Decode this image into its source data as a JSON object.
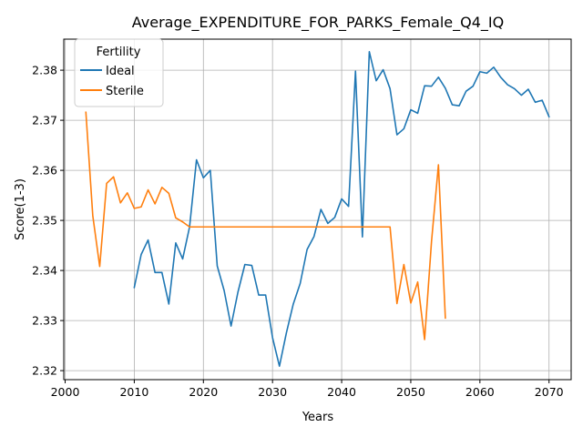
{
  "chart_data": {
    "type": "line",
    "title": "Average_EXPENDITURE_FOR_PARKS_Female_Q4_IQ",
    "xlabel": "Years",
    "ylabel": "Score(1-3)",
    "xlim": [
      1999.8,
      2073.2
    ],
    "ylim": [
      2.3182,
      2.3862
    ],
    "xticks": [
      2000,
      2010,
      2020,
      2030,
      2040,
      2050,
      2060,
      2070
    ],
    "yticks": [
      2.32,
      2.33,
      2.34,
      2.35,
      2.36,
      2.37,
      2.38
    ],
    "xtick_labels": [
      "2000",
      "2010",
      "2020",
      "2030",
      "2040",
      "2050",
      "2060",
      "2070"
    ],
    "ytick_labels": [
      "2.32",
      "2.33",
      "2.34",
      "2.35",
      "2.36",
      "2.37",
      "2.38"
    ],
    "grid": true,
    "legend": {
      "title": "Fertility",
      "position": "top-left"
    },
    "series": [
      {
        "name": "Ideal",
        "color": "#1f77b4",
        "x": [
          2010,
          2011,
          2012,
          2013,
          2014,
          2015,
          2016,
          2017,
          2018,
          2019,
          2020,
          2021,
          2022,
          2023,
          2024,
          2025,
          2026,
          2027,
          2028,
          2029,
          2030,
          2031,
          2032,
          2033,
          2034,
          2035,
          2036,
          2037,
          2038,
          2039,
          2040,
          2041,
          2042,
          2043,
          2044,
          2045,
          2046,
          2047,
          2048,
          2049,
          2050,
          2051,
          2052,
          2053,
          2054,
          2055,
          2056,
          2057,
          2058,
          2059,
          2060,
          2061,
          2062,
          2063,
          2064,
          2065,
          2066,
          2067,
          2068,
          2069,
          2070
        ],
        "y": [
          2.3366,
          2.3432,
          2.3461,
          2.3396,
          2.3396,
          2.3333,
          2.3455,
          2.3423,
          2.3487,
          2.3621,
          2.3585,
          2.36,
          2.3409,
          2.336,
          2.3289,
          2.3357,
          2.3412,
          2.341,
          2.3351,
          2.3351,
          2.3266,
          2.3209,
          2.3275,
          2.3333,
          2.3374,
          2.3442,
          2.3468,
          2.3522,
          2.3494,
          2.3506,
          2.3543,
          2.3528,
          2.3798,
          2.3467,
          2.3837,
          2.3779,
          2.3801,
          2.3763,
          2.3671,
          2.3683,
          2.3721,
          2.3714,
          2.3769,
          2.3768,
          2.3786,
          2.3764,
          2.3731,
          2.3729,
          2.3758,
          2.3768,
          2.3797,
          2.3794,
          2.3806,
          2.3786,
          2.3771,
          2.3763,
          2.375,
          2.3762,
          2.3736,
          2.374,
          2.3707
        ]
      },
      {
        "name": "Sterile",
        "color": "#ff7f0e",
        "x": [
          2003,
          2004,
          2005,
          2006,
          2007,
          2008,
          2009,
          2010,
          2011,
          2012,
          2013,
          2014,
          2015,
          2016,
          2017,
          2018,
          2019,
          2020,
          2021,
          2022,
          2023,
          2024,
          2025,
          2026,
          2027,
          2028,
          2029,
          2030,
          2031,
          2032,
          2033,
          2034,
          2035,
          2036,
          2037,
          2038,
          2039,
          2040,
          2041,
          2042,
          2043,
          2044,
          2045,
          2046,
          2047,
          2048,
          2049,
          2050,
          2051,
          2052,
          2053,
          2054,
          2055
        ],
        "y": [
          2.3716,
          2.3509,
          2.3408,
          2.3574,
          2.3587,
          2.3535,
          2.3555,
          2.3524,
          2.3527,
          2.3561,
          2.3533,
          2.3566,
          2.3554,
          2.3505,
          2.3497,
          2.3487,
          2.3487,
          2.3487,
          2.3487,
          2.3487,
          2.3487,
          2.3487,
          2.3487,
          2.3487,
          2.3487,
          2.3487,
          2.3487,
          2.3487,
          2.3487,
          2.3487,
          2.3487,
          2.3487,
          2.3487,
          2.3487,
          2.3487,
          2.3487,
          2.3487,
          2.3487,
          2.3487,
          2.3487,
          2.3487,
          2.3487,
          2.3487,
          2.3487,
          2.3487,
          2.3334,
          2.3412,
          2.3335,
          2.3377,
          2.3262,
          2.3458,
          2.3611,
          2.3305
        ]
      }
    ]
  }
}
